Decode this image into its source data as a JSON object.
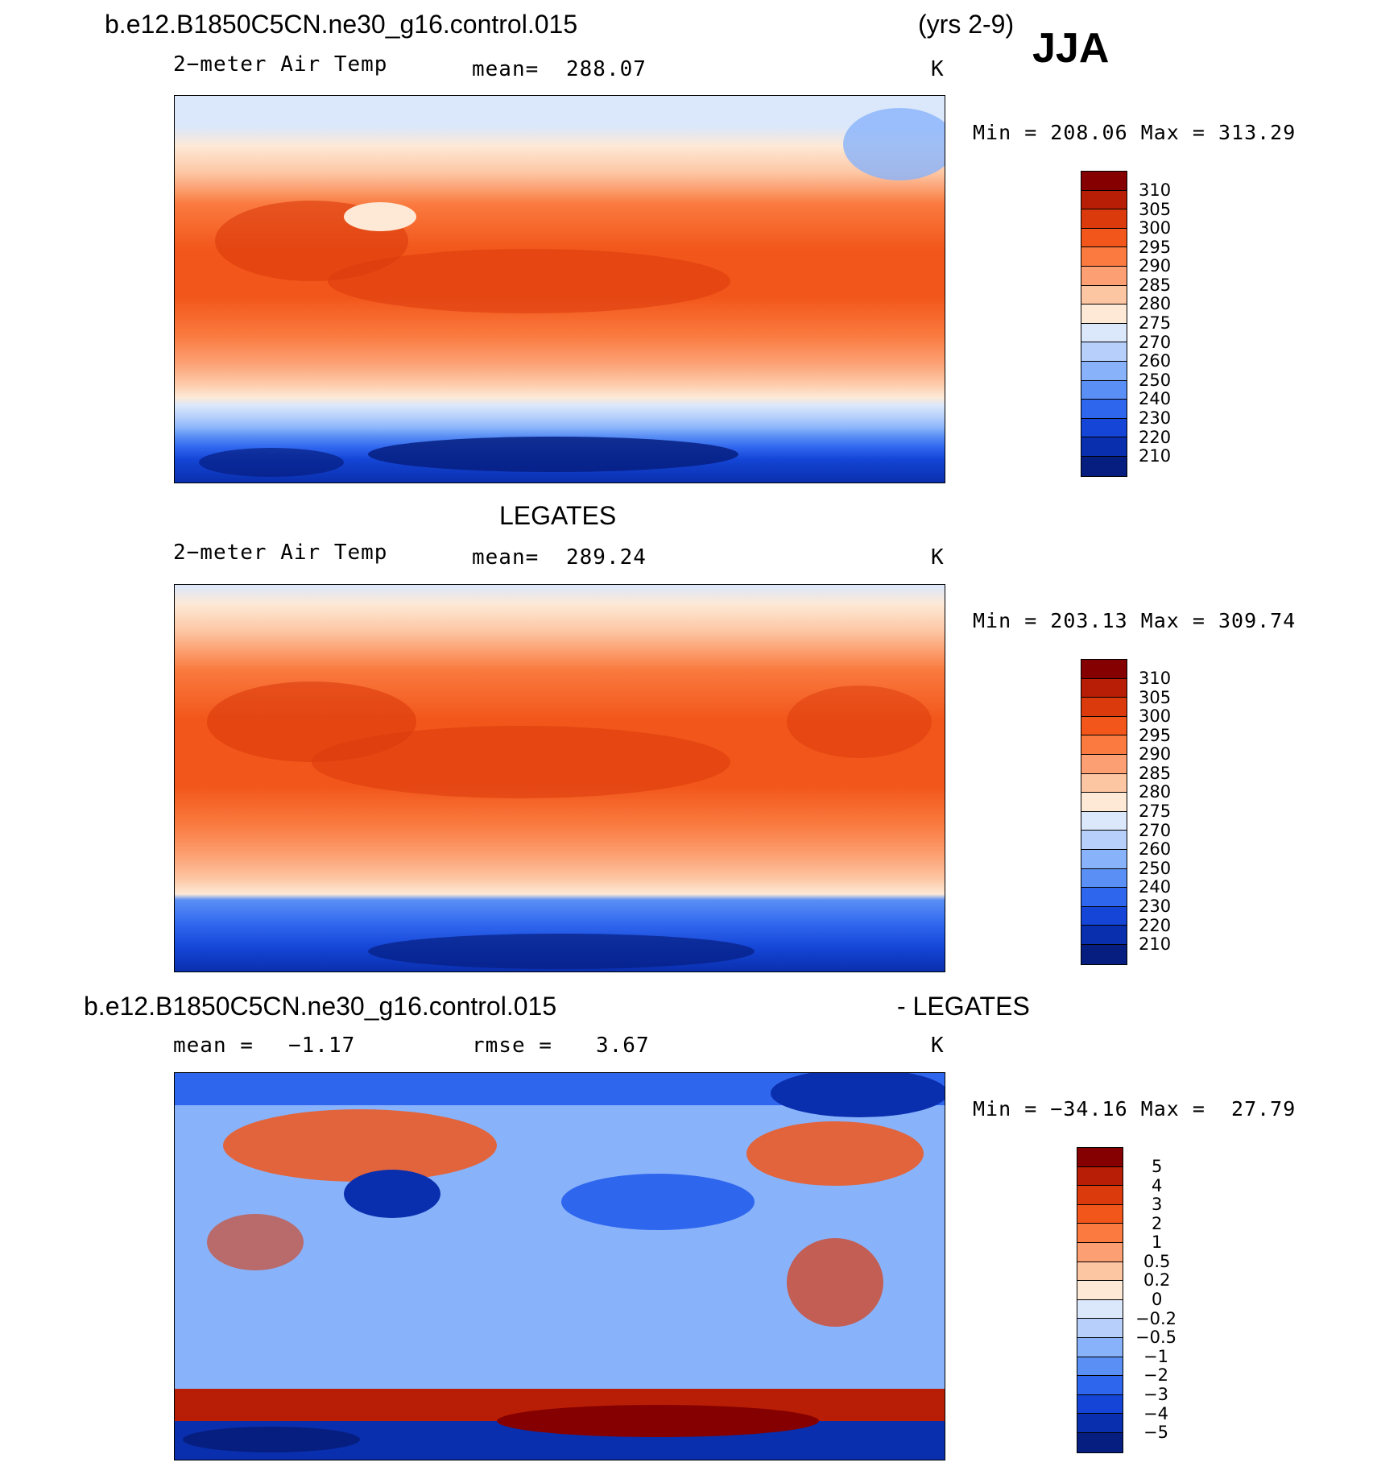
{
  "header": {
    "case_name": "b.e12.B1850C5CN.ne30_g16.control.015",
    "years": "(yrs 2-9)",
    "season": "JJA"
  },
  "panels": [
    {
      "id": "model",
      "title": "",
      "variable": "2−meter Air Temp",
      "stat_label": "mean=",
      "stat_value": "288.07",
      "units": "K",
      "minmax": "Min = 208.06 Max = 313.29"
    },
    {
      "id": "obs",
      "title": "LEGATES",
      "variable": "2−meter Air Temp",
      "stat_label": "mean=",
      "stat_value": "289.24",
      "units": "K",
      "minmax": "Min = 203.13 Max = 309.74"
    },
    {
      "id": "diff",
      "title_left": "b.e12.B1850C5CN.ne30_g16.control.015",
      "title_right": "- LEGATES",
      "stat_label": "mean =",
      "stat_value": "−1.17",
      "rmse_label": "rmse =",
      "rmse_value": "3.67",
      "units": "K",
      "minmax": "Min = −34.16 Max =  27.79"
    }
  ],
  "colorbar_abs": {
    "labels": [
      "310",
      "305",
      "300",
      "295",
      "290",
      "285",
      "280",
      "275",
      "270",
      "260",
      "250",
      "240",
      "230",
      "220",
      "210"
    ],
    "colors": [
      "#850000",
      "#b81e05",
      "#db3a0c",
      "#f2561a",
      "#fa7a3f",
      "#fca073",
      "#fdc6a3",
      "#fde9d6",
      "#dbe8fb",
      "#b6d0fb",
      "#88b3fb",
      "#5a8ff5",
      "#2f66ee",
      "#1445d6",
      "#0a2fae",
      "#061e80"
    ]
  },
  "colorbar_diff": {
    "labels": [
      "5",
      "4",
      "3",
      "2",
      "1",
      "0.5",
      "0.2",
      "0",
      "−0.2",
      "−0.5",
      "−1",
      "−2",
      "−3",
      "−4",
      "−5"
    ],
    "colors": [
      "#850000",
      "#b81e05",
      "#db3a0c",
      "#f2561a",
      "#fa7a3f",
      "#fca073",
      "#fdc6a3",
      "#fde9d6",
      "#dbe8fb",
      "#b6d0fb",
      "#88b3fb",
      "#5a8ff5",
      "#2f66ee",
      "#1445d6",
      "#0a2fae",
      "#061e80"
    ]
  }
}
